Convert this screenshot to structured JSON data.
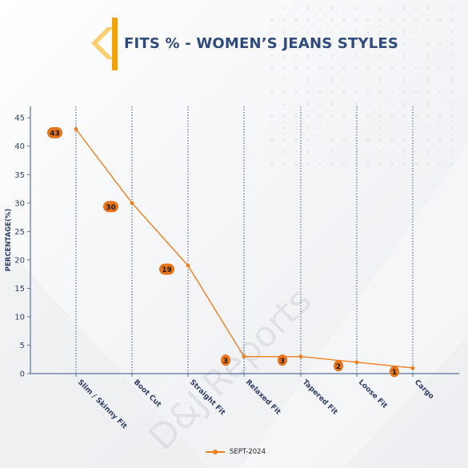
{
  "title": "FITS % - WOMEN’S JEANS STYLES",
  "watermark": "D&J Reports",
  "colors": {
    "accent": "#F5A300",
    "title": "#2F4A7C",
    "axis": "#5B6FA0",
    "tick_label": "#2F3E66",
    "series": "#F07F1D",
    "badge": "#E8741A",
    "badge_text": "#1a1a1a",
    "grid": "#3F5387"
  },
  "chart_data": {
    "type": "line",
    "title": "FITS % - WOMEN’S JEANS STYLES",
    "xlabel": "",
    "ylabel": "PERCENTAGE(%)",
    "categories": [
      "Slim / Skinny Fit",
      "Boot Cut",
      "Straight Fit",
      "Relaxed Fit",
      "Tapered Fit",
      "Loose Fit",
      "Cargo"
    ],
    "series": [
      {
        "name": "SEPT-2024",
        "values": [
          43,
          30,
          19,
          3,
          3,
          2,
          1
        ]
      }
    ],
    "ylim": [
      0,
      47
    ],
    "yticks": [
      0,
      5,
      10,
      15,
      20,
      25,
      30,
      35,
      40,
      45
    ],
    "grid": "vertical dotted lines at categories",
    "legend": "bottom-center"
  }
}
